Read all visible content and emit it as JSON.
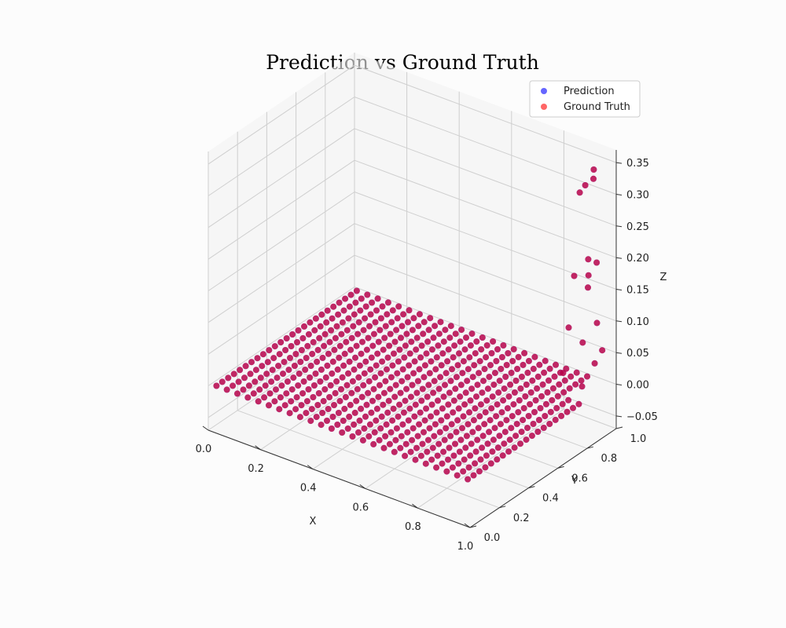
{
  "chart_data": {
    "type": "scatter",
    "projection": "3d",
    "title": "Prediction vs Ground Truth",
    "xlabel": "X",
    "ylabel": "Y",
    "zlabel": "Z",
    "xlim": [
      0,
      1
    ],
    "ylim": [
      0,
      1
    ],
    "zlim": [
      -0.07,
      0.37
    ],
    "xticks": [
      "0.0",
      "0.2",
      "0.4",
      "0.6",
      "0.8",
      "1.0"
    ],
    "yticks": [
      "0.0",
      "0.2",
      "0.4",
      "0.6",
      "0.8",
      "1.0"
    ],
    "zticks": [
      "−0.05",
      "0.00",
      "0.05",
      "0.10",
      "0.15",
      "0.20",
      "0.25",
      "0.30",
      "0.35"
    ],
    "grid": true,
    "legend_position": "top-right",
    "series": [
      {
        "name": "Prediction",
        "color": "#0000ff",
        "alpha": 0.6
      },
      {
        "name": "Ground Truth",
        "color": "#ff0000",
        "alpha": 0.6
      }
    ],
    "grid_points": {
      "x_range": [
        0.02,
        0.98
      ],
      "y_range": [
        0.02,
        0.98
      ],
      "count_per_axis": 25,
      "z_baseline": 0.0
    },
    "raised_points": [
      [
        0.96,
        0.86,
        0.33
      ],
      [
        0.97,
        0.9,
        0.35
      ],
      [
        0.98,
        0.88,
        0.34
      ],
      [
        0.95,
        0.84,
        0.32
      ],
      [
        0.94,
        0.82,
        0.19
      ],
      [
        0.96,
        0.88,
        0.21
      ],
      [
        0.97,
        0.92,
        0.2
      ],
      [
        0.95,
        0.9,
        0.18
      ],
      [
        0.97,
        0.86,
        0.17
      ],
      [
        0.93,
        0.8,
        0.11
      ],
      [
        0.96,
        0.94,
        0.1
      ],
      [
        0.95,
        0.86,
        0.08
      ],
      [
        0.98,
        0.94,
        0.06
      ],
      [
        0.92,
        0.78,
        0.04
      ],
      [
        0.94,
        0.96,
        0.03
      ],
      [
        0.97,
        0.82,
        0.02
      ]
    ]
  }
}
